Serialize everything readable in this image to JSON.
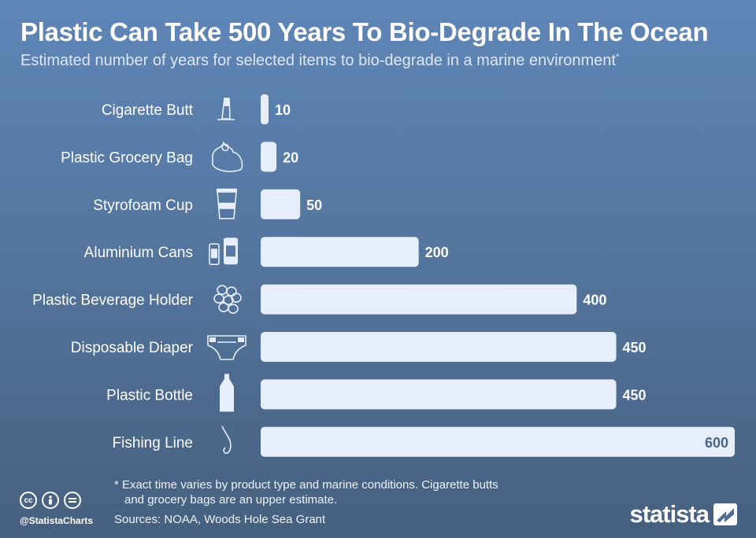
{
  "header": {
    "title": "Plastic Can Take 500 Years To Bio-Degrade In The Ocean",
    "subtitle": "Estimated number of years for selected items to bio-degrade in a marine environment",
    "subtitle_marker": "*"
  },
  "chart_data": {
    "type": "bar",
    "orientation": "horizontal",
    "title": "Plastic Can Take 500 Years To Bio-Degrade In The Ocean",
    "categories": [
      "Cigarette Butt",
      "Plastic Grocery Bag",
      "Styrofoam Cup",
      "Aluminium Cans",
      "Plastic Beverage Holder",
      "Disposable Diaper",
      "Plastic Bottle",
      "Fishing Line"
    ],
    "values": [
      10,
      20,
      50,
      200,
      400,
      450,
      450,
      600
    ],
    "icons": [
      "cigarette-butt-icon",
      "grocery-bag-icon",
      "styrofoam-cup-icon",
      "aluminium-cans-icon",
      "beverage-holder-icon",
      "diaper-icon",
      "plastic-bottle-icon",
      "fishing-line-icon"
    ],
    "xlim": [
      0,
      600
    ],
    "grid": false,
    "data_labels": true,
    "bar_color": "#e6eefb"
  },
  "footer": {
    "footnote_line1": "* Exact time varies by product type and marine conditions. Cigarette butts",
    "footnote_line2": "and grocery bags are an upper estimate.",
    "sources": "Sources: NOAA, Woods Hole Sea Grant",
    "handle": "@StatistaCharts",
    "brand": "statista",
    "license_icons": [
      "cc-icon",
      "by-icon",
      "equals-icon"
    ]
  },
  "colors": {
    "background_top": "#5f86b8",
    "background_bottom": "#46607f",
    "text": "#ffffff",
    "bar": "#e6eefb"
  }
}
